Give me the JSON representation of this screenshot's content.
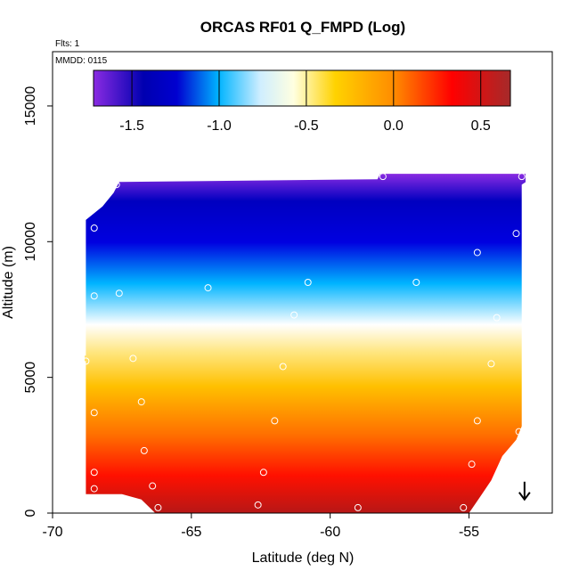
{
  "title": "ORCAS RF01 Q_FMPD (Log)",
  "flts_text": "Flts: 1",
  "mmdd_text": "MMDD: 0115",
  "chart_data": {
    "type": "heatmap",
    "title": "ORCAS RF01 Q_FMPD (Log)",
    "xlabel": "Latitude (deg N)",
    "ylabel": "Altitude (m)",
    "xlim": [
      -70,
      -52
    ],
    "ylim": [
      0,
      17000
    ],
    "x_ticks": [
      -70,
      -65,
      -60,
      -55
    ],
    "x_tick_labels": [
      "-70",
      "-65",
      "-60",
      "-55"
    ],
    "y_ticks": [
      0,
      5000,
      10000,
      15000
    ],
    "y_tick_labels": [
      "0",
      "5000",
      "10000",
      "15000"
    ],
    "colorbar": {
      "range": [
        -1.72,
        0.67
      ],
      "ticks": [
        -1.5,
        -1.0,
        -0.5,
        0.0,
        0.5
      ],
      "tick_labels": [
        "-1.5",
        "-1.0",
        "-0.5",
        "0.0",
        "0.5"
      ],
      "colors": [
        "#8a2be2",
        "#0000c8",
        "#00b4ff",
        "#ffffff",
        "#ffd700",
        "#ff8c00",
        "#ff0000",
        "#a52a2a"
      ]
    },
    "profile": [
      {
        "alt": 0,
        "value": 0.6
      },
      {
        "alt": 1000,
        "value": 0.55
      },
      {
        "alt": 2000,
        "value": 0.48
      },
      {
        "alt": 3000,
        "value": 0.4
      },
      {
        "alt": 4000,
        "value": 0.25
      },
      {
        "alt": 5000,
        "value": 0.12
      },
      {
        "alt": 6000,
        "value": -0.05
      },
      {
        "alt": 7000,
        "value": -0.35
      },
      {
        "alt": 8000,
        "value": -0.75
      },
      {
        "alt": 9000,
        "value": -1.05
      },
      {
        "alt": 10000,
        "value": -1.3
      },
      {
        "alt": 11000,
        "value": -1.5
      },
      {
        "alt": 12000,
        "value": -1.62
      },
      {
        "alt": 12500,
        "value": -1.7
      }
    ],
    "flight_points": [
      {
        "lat": -68.8,
        "alt": 5600
      },
      {
        "lat": -68.5,
        "alt": 10500
      },
      {
        "lat": -68.5,
        "alt": 8000
      },
      {
        "lat": -68.5,
        "alt": 3700
      },
      {
        "lat": -68.5,
        "alt": 1500
      },
      {
        "lat": -68.5,
        "alt": 900
      },
      {
        "lat": -67.7,
        "alt": 12100
      },
      {
        "lat": -67.6,
        "alt": 8100
      },
      {
        "lat": -67.1,
        "alt": 5700
      },
      {
        "lat": -66.8,
        "alt": 4100
      },
      {
        "lat": -66.7,
        "alt": 2300
      },
      {
        "lat": -66.4,
        "alt": 1000
      },
      {
        "lat": -66.2,
        "alt": 200
      },
      {
        "lat": -64.4,
        "alt": 8300
      },
      {
        "lat": -62.6,
        "alt": 300
      },
      {
        "lat": -62.4,
        "alt": 1500
      },
      {
        "lat": -62.0,
        "alt": 3400
      },
      {
        "lat": -61.7,
        "alt": 5400
      },
      {
        "lat": -61.3,
        "alt": 7300
      },
      {
        "lat": -60.8,
        "alt": 8500
      },
      {
        "lat": -59.0,
        "alt": 200
      },
      {
        "lat": -58.1,
        "alt": 12400
      },
      {
        "lat": -56.9,
        "alt": 8500
      },
      {
        "lat": -55.2,
        "alt": 200
      },
      {
        "lat": -54.9,
        "alt": 1800
      },
      {
        "lat": -54.7,
        "alt": 3400
      },
      {
        "lat": -54.7,
        "alt": 9600
      },
      {
        "lat": -54.2,
        "alt": 5500
      },
      {
        "lat": -54.0,
        "alt": 7200
      },
      {
        "lat": -53.3,
        "alt": 10300
      },
      {
        "lat": -53.2,
        "alt": 3000
      },
      {
        "lat": -53.1,
        "alt": 12400
      }
    ],
    "wind_arrow": {
      "lat": -53.0,
      "alt": 500
    }
  }
}
